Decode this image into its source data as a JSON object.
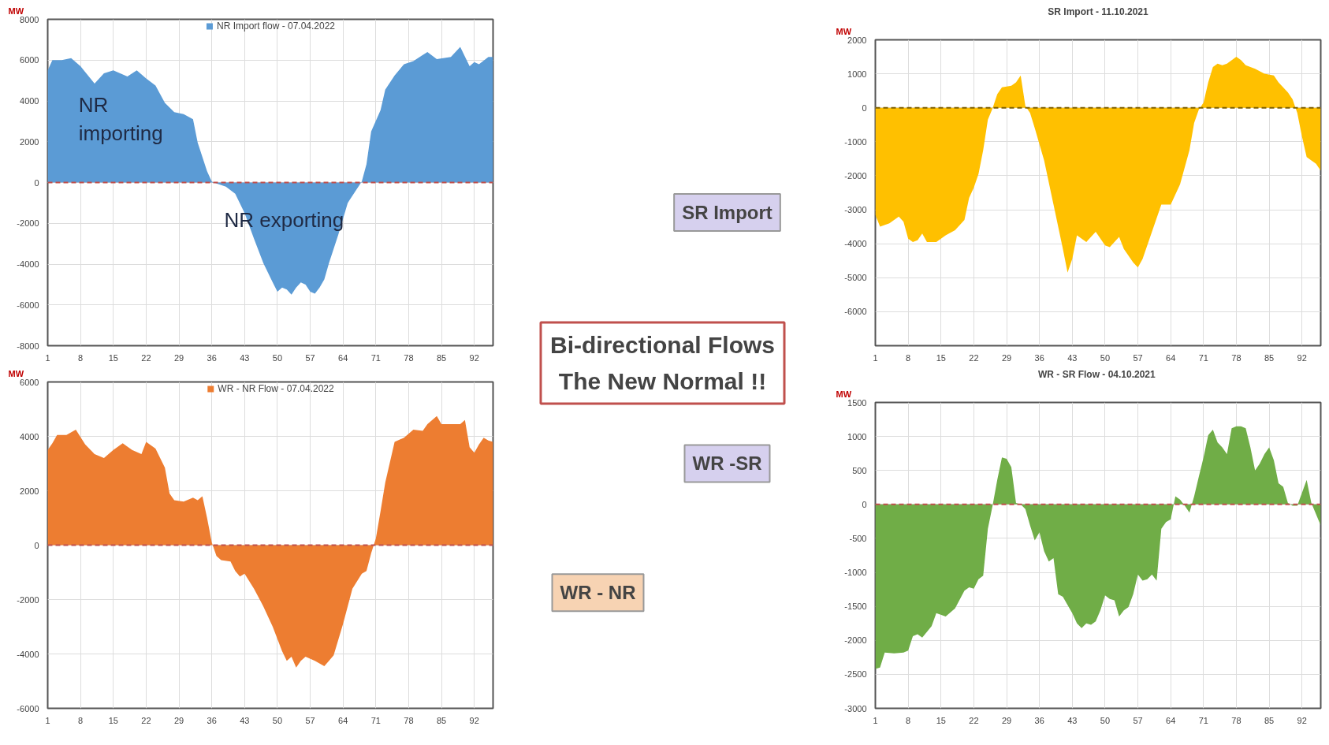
{
  "chart_data": [
    {
      "type": "area",
      "ylabel": "MW",
      "xlim": [
        1,
        96
      ],
      "xticks": [
        1,
        8,
        15,
        22,
        29,
        36,
        43,
        50,
        57,
        64,
        71,
        78,
        85,
        92
      ],
      "ylim": [
        -8000,
        8000
      ],
      "yticks": [
        8000,
        6000,
        4000,
        2000,
        0,
        -2000,
        -4000,
        -6000,
        -8000
      ],
      "grid": true,
      "legend": "top",
      "ref_lines": [
        {
          "axis": "y",
          "value": 0,
          "color": "#c0504d",
          "line_style": "dashed"
        }
      ],
      "annotations": [
        "NR\nimporting",
        "NR exporting"
      ],
      "series": [
        {
          "name": "NR Import flow - 07.04.2022",
          "color": "#5b9bd5",
          "x": [
            1,
            2,
            4,
            6,
            8,
            11,
            13,
            15,
            18,
            20,
            22,
            24,
            26,
            28,
            30,
            32,
            33,
            35,
            36,
            37,
            39,
            41,
            43,
            45,
            47,
            49,
            50,
            51,
            52,
            53,
            54,
            55,
            56,
            57,
            58,
            59,
            60,
            61,
            63,
            65,
            67,
            68,
            69,
            70,
            72,
            73,
            75,
            77,
            79,
            81,
            82,
            84,
            87,
            89,
            91,
            92,
            93,
            95,
            96
          ],
          "values": [
            5500,
            6000,
            6000,
            6100,
            5700,
            4850,
            5350,
            5500,
            5200,
            5500,
            5100,
            4750,
            3900,
            3450,
            3350,
            3100,
            1950,
            550,
            50,
            -50,
            -200,
            -550,
            -1500,
            -2750,
            -3950,
            -4900,
            -5350,
            -5150,
            -5250,
            -5500,
            -5150,
            -4900,
            -5000,
            -5350,
            -5450,
            -5150,
            -4750,
            -3950,
            -2550,
            -1000,
            -300,
            50,
            900,
            2500,
            3550,
            4550,
            5250,
            5800,
            5950,
            6250,
            6400,
            6050,
            6150,
            6650,
            5700,
            5900,
            5800,
            6150,
            6150
          ]
        }
      ]
    },
    {
      "type": "area",
      "ylabel": "MW",
      "xlim": [
        1,
        96
      ],
      "xticks": [
        1,
        8,
        15,
        22,
        29,
        36,
        43,
        50,
        57,
        64,
        71,
        78,
        85,
        92
      ],
      "ylim": [
        -6000,
        6000
      ],
      "yticks": [
        6000,
        4000,
        2000,
        0,
        -2000,
        -4000,
        -6000
      ],
      "grid": true,
      "legend": "top",
      "ref_lines": [
        {
          "axis": "y",
          "value": 0,
          "color": "#c0504d",
          "line_style": "dashed"
        }
      ],
      "series": [
        {
          "name": "WR - NR Flow - 07.04.2022",
          "color": "#ed7d31",
          "x": [
            1,
            2,
            3,
            5,
            7,
            9,
            11,
            13,
            15,
            17,
            19,
            21,
            22,
            24,
            26,
            27,
            28,
            30,
            32,
            33,
            34,
            35,
            36,
            37,
            38,
            40,
            41,
            42,
            43,
            45,
            47,
            49,
            51,
            52,
            53,
            54,
            55,
            56,
            58,
            60,
            61,
            62,
            64,
            66,
            68,
            69,
            70,
            71,
            72,
            73,
            75,
            77,
            79,
            81,
            82,
            84,
            85,
            87,
            89,
            90,
            91,
            92,
            93,
            94,
            95,
            96
          ],
          "values": [
            3500,
            3750,
            4050,
            4050,
            4250,
            3700,
            3350,
            3200,
            3500,
            3750,
            3500,
            3350,
            3800,
            3550,
            2850,
            1900,
            1650,
            1600,
            1750,
            1650,
            1800,
            1000,
            100,
            -400,
            -550,
            -600,
            -950,
            -1150,
            -1050,
            -1600,
            -2250,
            -3000,
            -3900,
            -4250,
            -4100,
            -4500,
            -4250,
            -4100,
            -4250,
            -4450,
            -4250,
            -4050,
            -2900,
            -1600,
            -1050,
            -950,
            -300,
            250,
            1250,
            2300,
            3800,
            3950,
            4250,
            4200,
            4450,
            4750,
            4450,
            4450,
            4450,
            4600,
            3600,
            3400,
            3700,
            3950,
            3850,
            3800
          ]
        }
      ]
    },
    {
      "type": "area",
      "title": "SR Import - 11.10.2021",
      "ylabel": "MW",
      "xlim": [
        1,
        96
      ],
      "xticks": [
        1,
        8,
        15,
        22,
        29,
        36,
        43,
        50,
        57,
        64,
        71,
        78,
        85,
        92
      ],
      "ylim": [
        -7000,
        2000
      ],
      "yticks": [
        2000,
        1000,
        0,
        -1000,
        -2000,
        -3000,
        -4000,
        -5000,
        -6000,
        {
          "value": -7000,
          "label": null
        }
      ],
      "grid": true,
      "ref_lines": [
        {
          "axis": "y",
          "value": 0,
          "color": "#7f6000",
          "line_style": "dashed"
        }
      ],
      "series": [
        {
          "color": "#ffc000",
          "x": [
            1,
            2,
            4,
            6,
            7,
            8,
            9,
            10,
            11,
            12,
            14,
            16,
            18,
            20,
            21,
            22,
            23,
            24,
            25,
            26,
            27,
            28,
            30,
            31,
            32,
            33,
            34,
            35,
            37,
            39,
            41,
            42,
            43,
            44,
            46,
            47,
            48,
            50,
            51,
            52,
            53,
            54,
            56,
            57,
            58,
            60,
            62,
            64,
            66,
            68,
            69,
            70,
            71,
            72,
            73,
            74,
            75,
            76,
            78,
            79,
            80,
            82,
            84,
            86,
            87,
            89,
            90,
            91,
            92,
            93,
            94,
            95,
            96
          ],
          "values": [
            -3150,
            -3500,
            -3400,
            -3200,
            -3350,
            -3850,
            -3950,
            -3900,
            -3700,
            -3950,
            -3950,
            -3750,
            -3600,
            -3300,
            -2650,
            -2350,
            -1950,
            -1250,
            -350,
            -20,
            400,
            600,
            650,
            750,
            950,
            50,
            -150,
            -600,
            -1550,
            -2850,
            -4150,
            -4850,
            -4450,
            -3750,
            -3950,
            -3800,
            -3650,
            -4050,
            -4100,
            -3950,
            -3800,
            -4150,
            -4550,
            -4700,
            -4450,
            -3650,
            -2850,
            -2850,
            -2250,
            -1250,
            -450,
            -50,
            150,
            750,
            1200,
            1300,
            1250,
            1300,
            1500,
            1400,
            1250,
            1150,
            1000,
            950,
            750,
            450,
            250,
            -150,
            -850,
            -1450,
            -1550,
            -1650,
            -1850
          ]
        }
      ]
    },
    {
      "type": "area",
      "title": "WR - SR Flow  - 04.10.2021",
      "ylabel": "MW",
      "xlim": [
        1,
        96
      ],
      "xticks": [
        1,
        8,
        15,
        22,
        29,
        36,
        43,
        50,
        57,
        64,
        71,
        78,
        85,
        92
      ],
      "ylim": [
        -3000,
        1500
      ],
      "yticks": [
        1500,
        1000,
        500,
        0,
        -500,
        -1000,
        -1500,
        -2000,
        -2500,
        -3000
      ],
      "grid": true,
      "ref_lines": [
        {
          "axis": "y",
          "value": 0,
          "color": "#c0504d",
          "line_style": "dashed"
        }
      ],
      "series": [
        {
          "color": "#70ad47",
          "x": [
            1,
            2,
            3,
            5,
            7,
            8,
            9,
            10,
            11,
            13,
            14,
            16,
            18,
            20,
            21,
            22,
            23,
            24,
            25,
            26,
            27,
            28,
            29,
            30,
            31,
            32,
            33,
            34,
            35,
            36,
            37,
            38,
            39,
            40,
            41,
            43,
            44,
            45,
            46,
            47,
            48,
            49,
            50,
            51,
            52,
            53,
            54,
            55,
            56,
            57,
            58,
            59,
            60,
            61,
            62,
            63,
            64,
            65,
            66,
            67,
            68,
            69,
            70,
            71,
            72,
            73,
            74,
            75,
            76,
            77,
            78,
            79,
            80,
            81,
            82,
            83,
            84,
            85,
            86,
            87,
            88,
            89,
            90,
            91,
            93,
            94,
            96
          ],
          "values": [
            -2420,
            -2400,
            -2180,
            -2190,
            -2180,
            -2150,
            -1940,
            -1910,
            -1960,
            -1790,
            -1600,
            -1650,
            -1530,
            -1270,
            -1220,
            -1240,
            -1100,
            -1050,
            -360,
            -20,
            360,
            690,
            670,
            550,
            20,
            0,
            -70,
            -310,
            -530,
            -410,
            -690,
            -840,
            -790,
            -1320,
            -1360,
            -1600,
            -1750,
            -1820,
            -1750,
            -1770,
            -1720,
            -1560,
            -1340,
            -1390,
            -1410,
            -1650,
            -1560,
            -1510,
            -1320,
            -1030,
            -1120,
            -1100,
            -1030,
            -1120,
            -360,
            -260,
            -220,
            120,
            70,
            -20,
            -120,
            120,
            410,
            690,
            1020,
            1100,
            910,
            840,
            740,
            1120,
            1150,
            1150,
            1120,
            840,
            500,
            600,
            740,
            840,
            650,
            310,
            260,
            20,
            -20,
            -20,
            360,
            20,
            -310
          ]
        }
      ]
    },
    {
      "type": "other",
      "title": "Bi-directional Flows\nThe New Normal !!",
      "annotations": [
        "SR Import",
        "WR -SR",
        "WR - NR"
      ]
    }
  ]
}
